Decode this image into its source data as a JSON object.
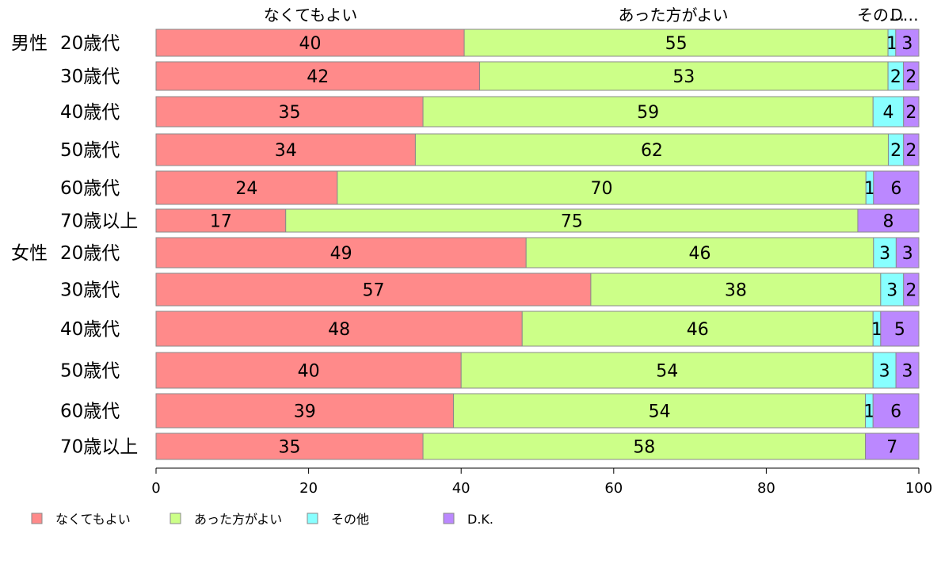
{
  "chart_data": {
    "type": "bar",
    "orientation": "horizontal",
    "stacked": true,
    "title": "",
    "xlabel": "",
    "ylabel": "",
    "xlim": [
      0,
      100
    ],
    "xticks": [
      0,
      20,
      40,
      60,
      80,
      100
    ],
    "column_headers": [
      "なくてもよい",
      "あった方がよい",
      "その…",
      "D…"
    ],
    "group_labels": [
      "男性",
      "女性"
    ],
    "categories": [
      "20歳代",
      "30歳代",
      "40歳代",
      "50歳代",
      "60歳代",
      "70歳以上",
      "20歳代",
      "30歳代",
      "40歳代",
      "50歳代",
      "60歳代",
      "70歳以上"
    ],
    "series": [
      {
        "name": "なくてもよい",
        "color": "#ff8a8a",
        "values": [
          40,
          42,
          35,
          34,
          24,
          17,
          49,
          57,
          48,
          40,
          39,
          35
        ]
      },
      {
        "name": "あった方がよい",
        "color": "#ccff88",
        "values": [
          55,
          53,
          59,
          62,
          70,
          75,
          46,
          38,
          46,
          54,
          54,
          58
        ]
      },
      {
        "name": "その他",
        "color": "#88ffff",
        "values": [
          1,
          2,
          4,
          2,
          1,
          0,
          3,
          3,
          1,
          3,
          1,
          0
        ]
      },
      {
        "name": "D.K.",
        "color": "#bb88ff",
        "values": [
          3,
          2,
          2,
          2,
          6,
          8,
          3,
          2,
          5,
          3,
          6,
          7
        ]
      }
    ],
    "legend_position": "bottom",
    "grid": false
  }
}
